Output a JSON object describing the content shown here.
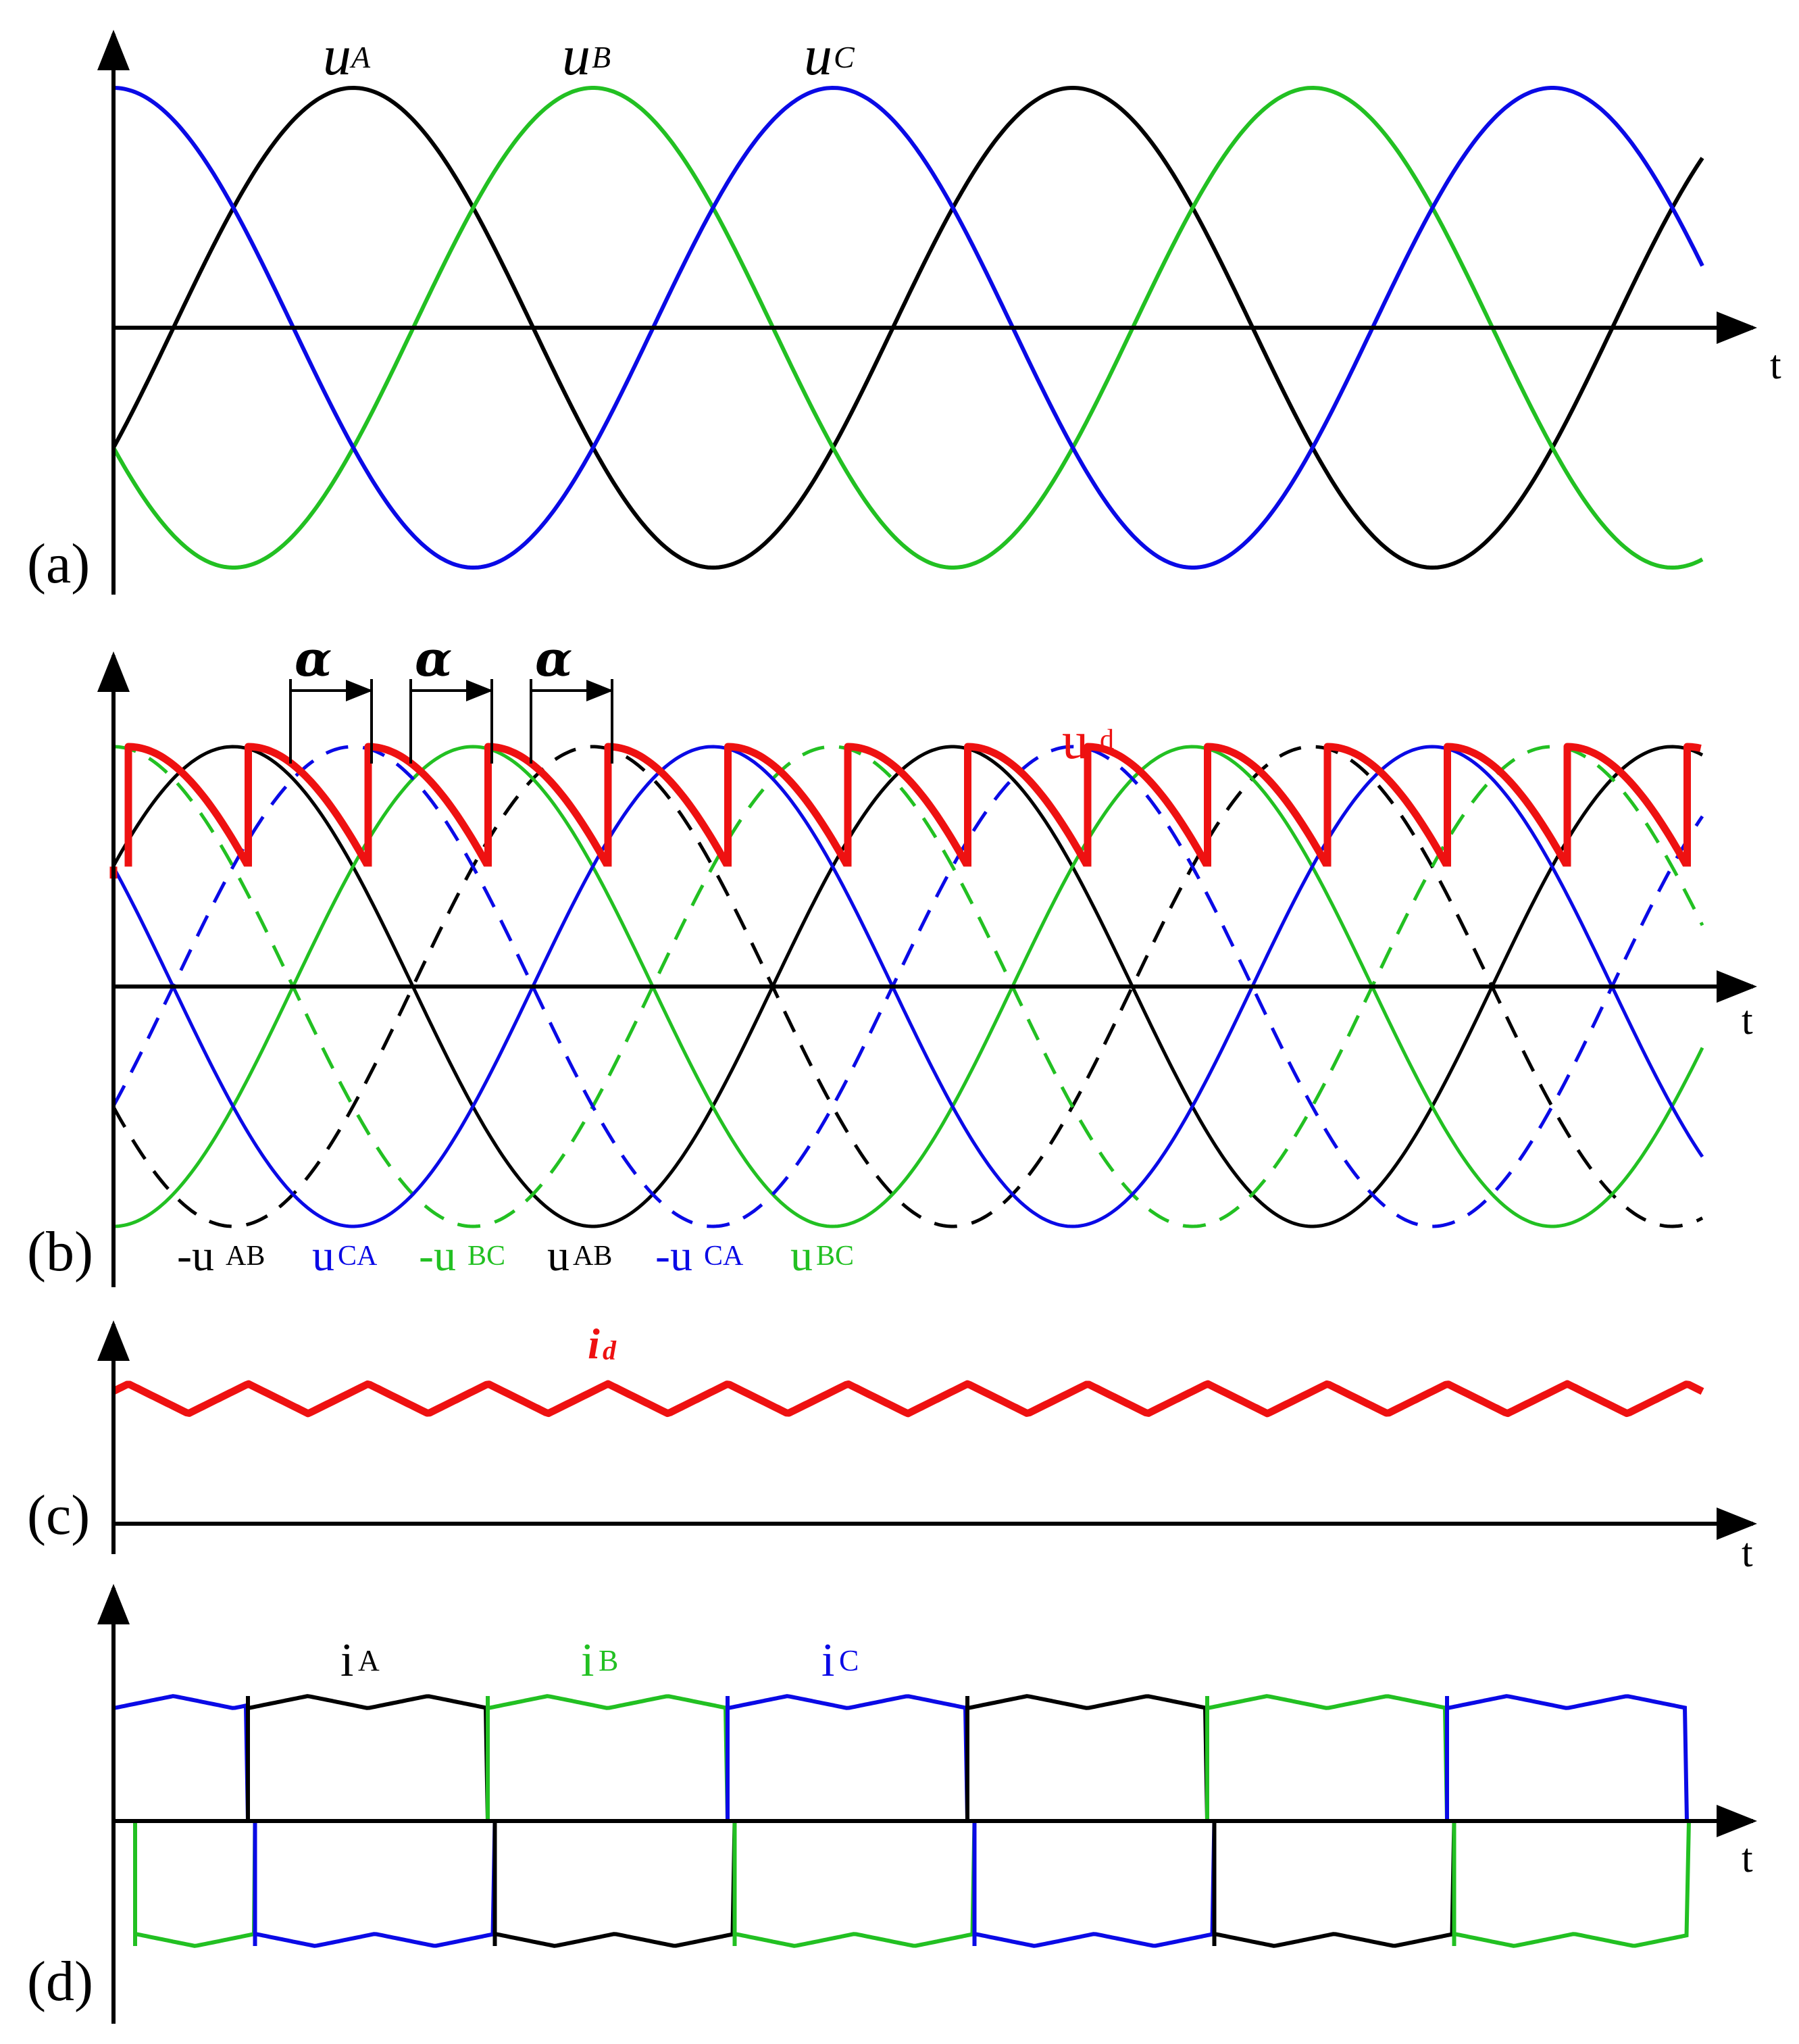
{
  "colors": {
    "phase_a": "#000000",
    "phase_b": "#22c022",
    "phase_c": "#0a0ae6",
    "dc": "#ee1111",
    "axis": "#000000"
  },
  "time_axis_label": "t",
  "panels": {
    "a": {
      "label": "(a)",
      "waves": [
        {
          "symbol": "u",
          "sub": "A",
          "color_key": "phase_a"
        },
        {
          "symbol": "u",
          "sub": "B",
          "color_key": "phase_b"
        },
        {
          "symbol": "u",
          "sub": "C",
          "color_key": "phase_c"
        }
      ]
    },
    "b": {
      "label": "(b)",
      "alpha_symbol": "α",
      "dc_voltage": {
        "symbol": "u",
        "sub": "d"
      },
      "line_voltages": [
        {
          "prefix": "-u",
          "sub": "AB",
          "color_key": "phase_a"
        },
        {
          "prefix": "u",
          "sub": "CA",
          "color_key": "phase_c"
        },
        {
          "prefix": "-u",
          "sub": "BC",
          "color_key": "phase_b"
        },
        {
          "prefix": "u",
          "sub": "AB",
          "color_key": "phase_a"
        },
        {
          "prefix": "-u",
          "sub": "CA",
          "color_key": "phase_c"
        },
        {
          "prefix": "u",
          "sub": "BC",
          "color_key": "phase_b"
        }
      ]
    },
    "c": {
      "label": "(c)",
      "dc_current": {
        "symbol": "i",
        "sub": "d"
      }
    },
    "d": {
      "label": "(d)",
      "currents": [
        {
          "symbol": "i",
          "sub": "A",
          "color_key": "phase_a"
        },
        {
          "symbol": "i",
          "sub": "B",
          "color_key": "phase_b"
        },
        {
          "symbol": "i",
          "sub": "C",
          "color_key": "phase_c"
        }
      ]
    }
  }
}
